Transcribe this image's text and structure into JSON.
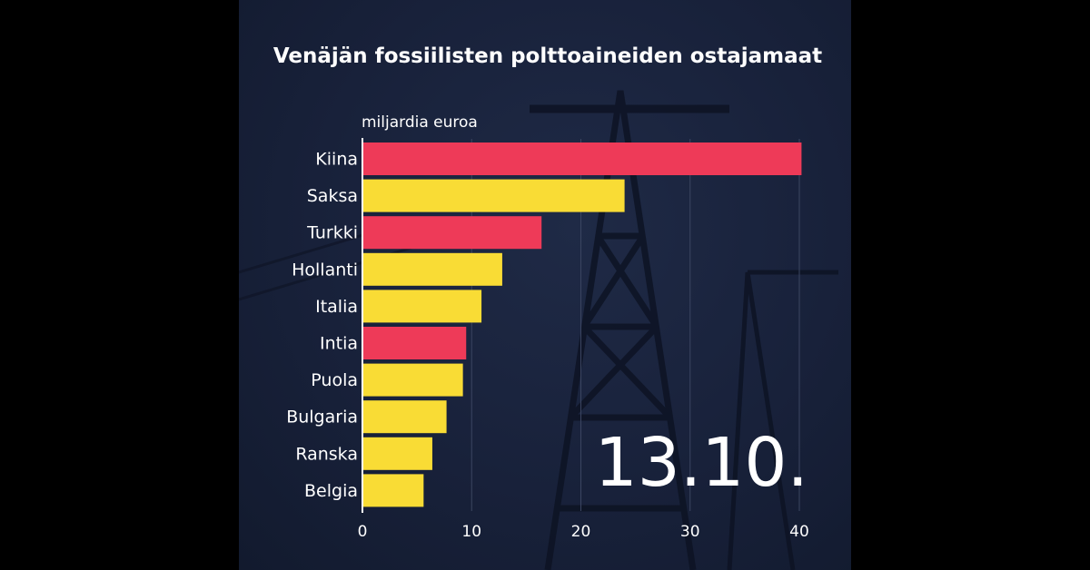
{
  "colors": {
    "background": "#18213a",
    "highlight": "#ee3a58",
    "default": "#f9dc35",
    "text": "#ffffff",
    "grid": "#3b4561"
  },
  "date_stamp": "13.10.",
  "chart_data": {
    "type": "bar",
    "orientation": "horizontal",
    "title": "Venäjän fossiilisten polttoaineiden ostajamaat",
    "unit_label": "miljardia euroa",
    "categories": [
      "Kiina",
      "Saksa",
      "Turkki",
      "Hollanti",
      "Italia",
      "Intia",
      "Puola",
      "Bulgaria",
      "Ranska",
      "Belgia"
    ],
    "values": [
      40.2,
      24.0,
      16.4,
      12.8,
      10.9,
      9.5,
      9.2,
      7.7,
      6.4,
      5.6
    ],
    "highlighted": [
      true,
      false,
      true,
      false,
      false,
      true,
      false,
      false,
      false,
      false
    ],
    "xlim": [
      0,
      40
    ],
    "xticks": [
      0,
      10,
      20,
      30,
      40
    ],
    "grid": true
  }
}
